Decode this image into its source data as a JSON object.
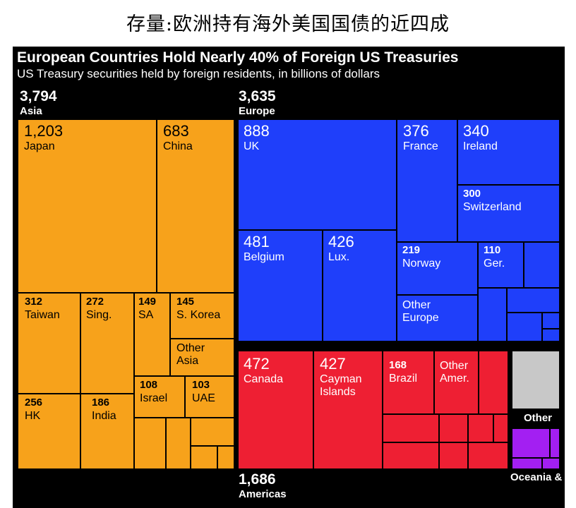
{
  "top_caption": "存量:欧洲持有海外美国国债的近四成",
  "colors": {
    "asia": "#f7a21b",
    "europe": "#1f3ffa",
    "americas": "#ee1f33",
    "other": "#c8c8c8",
    "oceania": "#a31ff2",
    "background": "#000000"
  },
  "chart_data": {
    "type": "treemap",
    "title": "European Countries Hold Nearly 40% of Foreign US Treasuries",
    "subtitle": "US Treasury securities held by foreign residents, in billions of dollars",
    "regions": [
      {
        "name": "Asia",
        "value": "3,794"
      },
      {
        "name": "Europe",
        "value": "3,635"
      },
      {
        "name": "Americas",
        "value": "1,686"
      },
      {
        "name": "Other",
        "value": ""
      },
      {
        "name": "Oceania & Africa",
        "value": ""
      }
    ],
    "cells": [
      {
        "region": "Asia",
        "label": "Japan",
        "value": "1,203"
      },
      {
        "region": "Asia",
        "label": "China",
        "value": "683"
      },
      {
        "region": "Asia",
        "label": "Taiwan",
        "value": "312"
      },
      {
        "region": "Asia",
        "label": "Sing.",
        "value": "272"
      },
      {
        "region": "Asia",
        "label": "SA",
        "value": "149"
      },
      {
        "region": "Asia",
        "label": "S. Korea",
        "value": "145"
      },
      {
        "region": "Asia",
        "label": "Other Asia",
        "value": ""
      },
      {
        "region": "Asia",
        "label": "HK",
        "value": "256"
      },
      {
        "region": "Asia",
        "label": "India",
        "value": "186"
      },
      {
        "region": "Asia",
        "label": "Israel",
        "value": "108"
      },
      {
        "region": "Asia",
        "label": "UAE",
        "value": "103"
      },
      {
        "region": "Europe",
        "label": "UK",
        "value": "888"
      },
      {
        "region": "Europe",
        "label": "France",
        "value": "376"
      },
      {
        "region": "Europe",
        "label": "Ireland",
        "value": "340"
      },
      {
        "region": "Europe",
        "label": "Switzerland",
        "value": "300"
      },
      {
        "region": "Europe",
        "label": "Belgium",
        "value": "481"
      },
      {
        "region": "Europe",
        "label": "Lux.",
        "value": "426"
      },
      {
        "region": "Europe",
        "label": "Norway",
        "value": "219"
      },
      {
        "region": "Europe",
        "label": "Ger.",
        "value": "110"
      },
      {
        "region": "Europe",
        "label": "Other Europe",
        "value": ""
      },
      {
        "region": "Americas",
        "label": "Canada",
        "value": "472"
      },
      {
        "region": "Americas",
        "label": "Cayman Islands",
        "value": "427"
      },
      {
        "region": "Americas",
        "label": "Brazil",
        "value": "168"
      },
      {
        "region": "Americas",
        "label": "Other Amer.",
        "value": ""
      }
    ]
  }
}
